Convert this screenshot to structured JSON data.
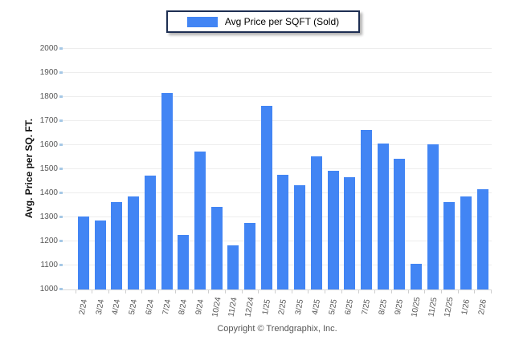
{
  "legend": {
    "label": "Avg Price per SQFT (Sold)",
    "swatch_color": "#4285f4"
  },
  "y_axis": {
    "title": "Avg. Price per SQ. FT.",
    "min": 1000,
    "max": 2000,
    "step": 100
  },
  "footer": {
    "text": "Copyright © Trendgraphix, Inc."
  },
  "chart_data": {
    "type": "bar",
    "title": "Avg Price per SQFT (Sold)",
    "categories": [
      "2/24",
      "3/24",
      "4/24",
      "5/24",
      "6/24",
      "7/24",
      "8/24",
      "9/24",
      "10/24",
      "11/24",
      "12/24",
      "1/25",
      "2/25",
      "3/25",
      "4/25",
      "5/25",
      "6/25",
      "7/25",
      "8/25",
      "9/25",
      "10/25",
      "11/25",
      "12/25",
      "1/26",
      "2/26"
    ],
    "values": [
      1300,
      1285,
      1360,
      1385,
      1470,
      1815,
      1225,
      1570,
      1340,
      1180,
      1275,
      1760,
      1475,
      1430,
      1550,
      1490,
      1465,
      1660,
      1605,
      1540,
      1105,
      1600,
      1360,
      1385,
      1415
    ],
    "xlabel": "",
    "ylabel": "Avg. Price per SQ. FT.",
    "ylim": [
      1000,
      2000
    ],
    "ytick_step": 100,
    "grid": true,
    "legend_position": "top-center",
    "bar_color": "#4285f4"
  }
}
